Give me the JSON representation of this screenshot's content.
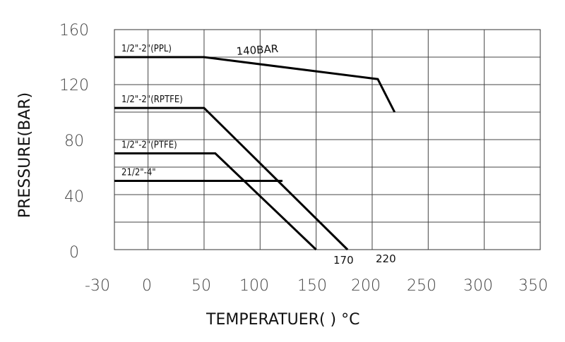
{
  "chart_data": {
    "type": "line",
    "xlabel": "TEMPERATUER(     )  °C",
    "ylabel": "PRESSURE(BAR)",
    "xlim": [
      -30,
      350
    ],
    "ylim": [
      0,
      160
    ],
    "x_ticks": [
      "-30",
      "0",
      "50",
      "100",
      "150",
      "200",
      "250",
      "300",
      "350"
    ],
    "y_ticks": [
      "0",
      "40",
      "80",
      "120",
      "160"
    ],
    "grid": true,
    "series": [
      {
        "name": "1/2\"-2\"(PPL)",
        "points": [
          [
            -30,
            140
          ],
          [
            50,
            140
          ],
          [
            205,
            124
          ],
          [
            220,
            100
          ]
        ]
      },
      {
        "name": "1/2\"-2\"(RPTFE)",
        "points": [
          [
            -30,
            103
          ],
          [
            50,
            103
          ],
          [
            178,
            0
          ]
        ]
      },
      {
        "name": "1/2\"-2\"(PTFE)",
        "points": [
          [
            -30,
            70
          ],
          [
            60,
            70
          ],
          [
            150,
            0
          ]
        ]
      },
      {
        "name": "21/2\"-4\"",
        "points": [
          [
            -30,
            50
          ],
          [
            120,
            50
          ]
        ]
      }
    ],
    "annotations": [
      {
        "text": "140BAR",
        "x": 120,
        "y": 143
      },
      {
        "text": "170",
        "x": 170,
        "y": -7
      },
      {
        "text": "220",
        "x": 220,
        "y": -5
      }
    ]
  }
}
